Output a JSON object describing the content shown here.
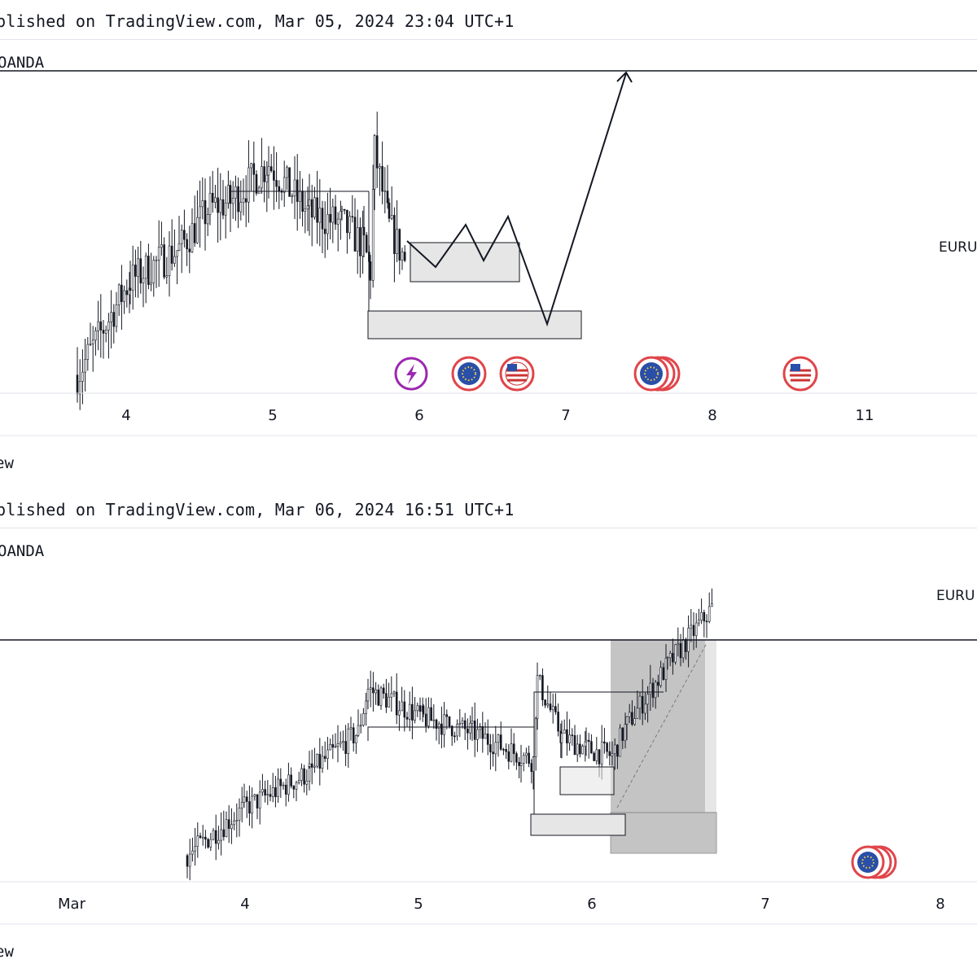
{
  "panels": [
    {
      "published": "blished on TradingView.com, Mar 05, 2024 23:04 UTC+1",
      "symbol": "OANDA",
      "pair_label": "EURU",
      "footer": "ew",
      "x_ticks": [
        "4",
        "5",
        "6",
        "7",
        "8",
        "11"
      ],
      "event_icons": [
        "lightning-event-icon",
        "eu-flag-icon",
        "us-flag-icon",
        "eu-flag-icon",
        "us-flag-icon"
      ]
    },
    {
      "published": "blished on TradingView.com, Mar 06, 2024 16:51 UTC+1",
      "symbol": "OANDA",
      "pair_label": "EURU",
      "footer": "ew",
      "x_ticks": [
        "Mar",
        "4",
        "5",
        "6",
        "7",
        "8"
      ],
      "event_icons": [
        "eu-flag-icon"
      ]
    }
  ],
  "colors": {
    "candle": "#131722",
    "zone_fill": "#e6e6e6",
    "dark_zone": "#b8b8b8",
    "eu_blue": "#2a4fa8",
    "event_red": "#e0454a",
    "event_purple": "#9c27b0",
    "grid": "#e0e3eb"
  },
  "chart_data": [
    {
      "type": "candlestick",
      "title": "",
      "series": [
        {
          "values": [
            1.0805,
            1.0835,
            1.0845,
            1.0858,
            1.086,
            1.0872,
            1.0856,
            1.0853,
            1.0846,
            1.0838,
            1.0876,
            1.0852,
            1.084
          ]
        }
      ],
      "annotations": [
        "resistance line",
        "rectangle zone",
        "rectangle zone",
        "zigzag projection arrow"
      ]
    },
    {
      "type": "candlestick",
      "title": "",
      "series": [
        {
          "values": [
            1.08,
            1.082,
            1.0835,
            1.0845,
            1.0852,
            1.087,
            1.0858,
            1.0852,
            1.0842,
            1.084,
            1.0874,
            1.085,
            1.0845,
            1.0842,
            1.0855,
            1.088,
            1.0905
          ]
        }
      ],
      "annotations": [
        "resistance line",
        "rectangle zone",
        "shaded long position box"
      ]
    }
  ]
}
